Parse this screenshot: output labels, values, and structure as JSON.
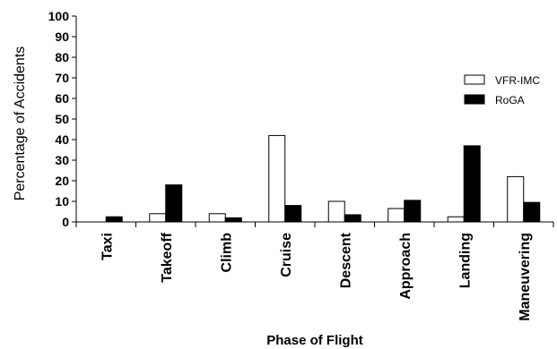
{
  "chart_data": {
    "type": "bar",
    "categories": [
      "Taxi",
      "Takeoff",
      "Climb",
      "Cruise",
      "Descent",
      "Approach",
      "Landing",
      "Maneuvering"
    ],
    "series": [
      {
        "name": "VFR-IMC",
        "values": [
          0,
          4,
          4,
          42,
          10,
          6.5,
          2.5,
          22
        ],
        "color": "#ffffff"
      },
      {
        "name": "RoGA",
        "values": [
          2.5,
          18,
          2,
          8,
          3.5,
          10.5,
          37,
          9.5
        ],
        "color": "#000000"
      }
    ],
    "title": "",
    "xlabel": "Phase of Flight",
    "ylabel": "Percentage of Accidents",
    "ylim": [
      0,
      100
    ],
    "yticks": [
      0,
      10,
      20,
      30,
      40,
      50,
      60,
      70,
      80,
      90,
      100
    ],
    "grid": false,
    "legend_position": "right"
  }
}
